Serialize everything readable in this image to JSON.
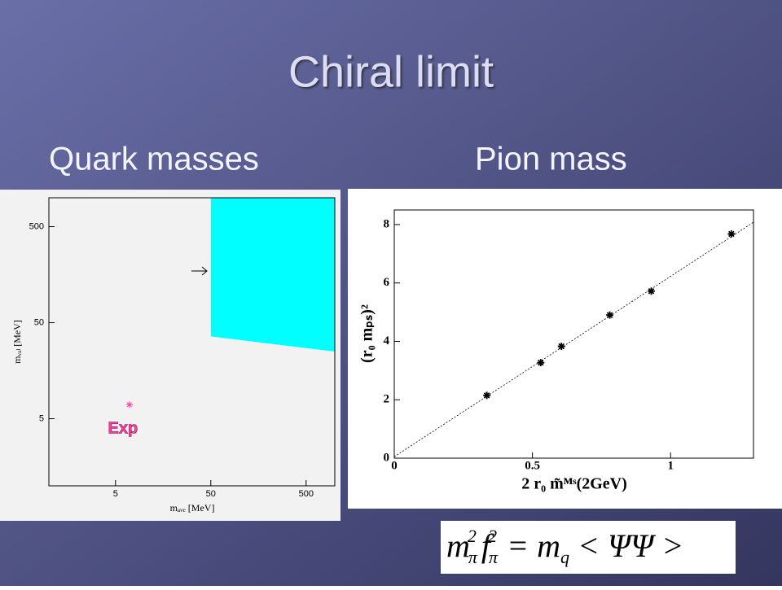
{
  "title": "Chiral limit",
  "subtitles": [
    "Quark masses",
    "Pion mass"
  ],
  "formula": [
    "m",
    "π",
    "2",
    "f",
    "π",
    "2",
    "= m",
    "q",
    "< ΨΨ >"
  ],
  "chart_data": [
    {
      "type": "region",
      "x_label": "mₐᵥₑ [MeV]",
      "y_label": "mᵥₐₗ [MeV]",
      "log_x": true,
      "log_y": true,
      "xlim": [
        1,
        1000
      ],
      "ylim": [
        1,
        1000
      ],
      "xticks": [
        5,
        50,
        500
      ],
      "yticks": [
        5,
        50,
        500
      ],
      "series": [
        {
          "type": "area",
          "color": "#00ffff",
          "x": [
            50,
            1000
          ],
          "lower": [
            36,
            25
          ],
          "upper": [
            1000,
            1000
          ]
        },
        {
          "type": "scatter",
          "name": "Exp",
          "color": "#ff3fa0",
          "x": [
            7
          ],
          "values": [
            7
          ]
        }
      ]
    },
    {
      "type": "scatter",
      "x_label": "2 r₀ m̃ᴹˢ(2GeV)",
      "y_label": "(r₀ mₚₛ)²",
      "xlim": [
        0,
        1.3
      ],
      "ylim": [
        0,
        8.5
      ],
      "xticks": [
        0,
        0.5,
        1
      ],
      "yticks": [
        0,
        2,
        4,
        6,
        8
      ],
      "color": "#000000",
      "x": [
        0.335,
        0.53,
        0.605,
        0.78,
        0.93,
        1.22
      ],
      "values": [
        2.15,
        3.27,
        3.83,
        4.9,
        5.72,
        7.68
      ],
      "fit": {
        "x": [
          0,
          1.3
        ],
        "values": [
          0.05,
          8.08
        ]
      }
    }
  ]
}
